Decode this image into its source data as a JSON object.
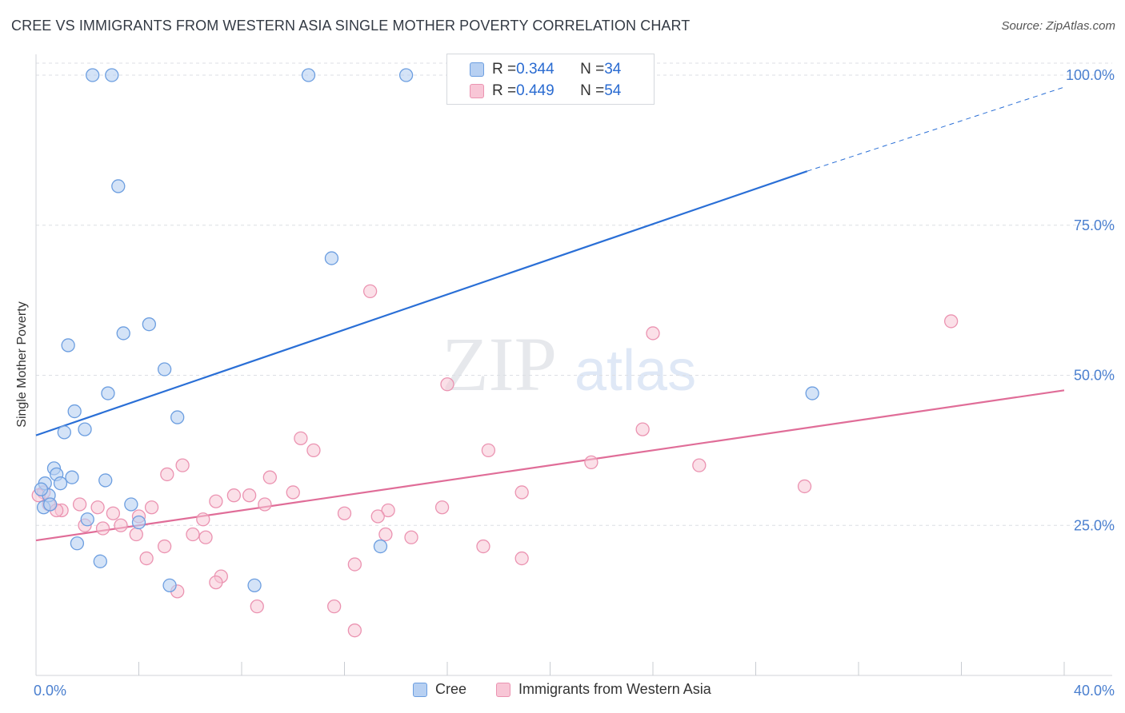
{
  "title": "CREE VS IMMIGRANTS FROM WESTERN ASIA SINGLE MOTHER POVERTY CORRELATION CHART",
  "source": "Source: ZipAtlas.com",
  "watermark": {
    "zip": "ZIP",
    "atlas": "atlas"
  },
  "stats": {
    "r_label": "R = ",
    "n_label": "N = ",
    "rows": [
      {
        "series": "Cree",
        "r": "0.344",
        "n": "34"
      },
      {
        "series": "Immigrants from Western Asia",
        "r": "0.449",
        "n": "54"
      }
    ]
  },
  "legend": {
    "items": [
      "Cree",
      "Immigrants from Western Asia"
    ]
  },
  "colors": {
    "cree_fill": "#b7d0f2",
    "cree_stroke": "#6c9ee0",
    "cree_line": "#2a6fd6",
    "wa_fill": "#f8c6d6",
    "wa_stroke": "#eb93b1",
    "wa_line": "#e06d98",
    "axis_text": "#4a7fcf",
    "grid": "#dcdfe4"
  },
  "chart_data": {
    "type": "scatter",
    "title": "CREE VS IMMIGRANTS FROM WESTERN ASIA SINGLE MOTHER POVERTY CORRELATION CHART",
    "xlabel": "",
    "ylabel": "Single Mother Poverty",
    "xlim": [
      0,
      40
    ],
    "ylim": [
      0,
      102
    ],
    "x_tick_labels": [
      "0.0%",
      "40.0%"
    ],
    "y_ticks": [
      25,
      50,
      75,
      100
    ],
    "y_tick_labels": [
      "25.0%",
      "50.0%",
      "75.0%",
      "100.0%"
    ],
    "grid": true,
    "legend_position": "bottom",
    "series": [
      {
        "name": "Cree",
        "trend": {
          "x0": 0,
          "y0": 40,
          "x1": 30,
          "y1": 84,
          "dashed_to_x": 40,
          "dashed_to_y": 98
        },
        "points": [
          [
            2.2,
            100
          ],
          [
            2.95,
            100
          ],
          [
            10.6,
            100
          ],
          [
            14.4,
            100
          ],
          [
            3.2,
            81.5
          ],
          [
            11.5,
            69.5
          ],
          [
            4.4,
            58.5
          ],
          [
            3.4,
            57
          ],
          [
            1.25,
            55
          ],
          [
            5.0,
            51
          ],
          [
            2.8,
            47
          ],
          [
            30.2,
            47
          ],
          [
            1.5,
            44
          ],
          [
            5.5,
            43
          ],
          [
            1.9,
            41
          ],
          [
            1.1,
            40.5
          ],
          [
            0.7,
            34.5
          ],
          [
            0.8,
            33.5
          ],
          [
            1.4,
            33
          ],
          [
            2.7,
            32.5
          ],
          [
            0.35,
            32
          ],
          [
            0.95,
            32
          ],
          [
            0.5,
            30
          ],
          [
            0.3,
            28
          ],
          [
            3.7,
            28.5
          ],
          [
            2.0,
            26
          ],
          [
            4.0,
            25.5
          ],
          [
            1.6,
            22
          ],
          [
            13.4,
            21.5
          ],
          [
            2.5,
            19
          ],
          [
            5.2,
            15
          ],
          [
            8.5,
            15
          ],
          [
            0.55,
            28.5
          ],
          [
            0.2,
            31
          ]
        ]
      },
      {
        "name": "Immigrants from Western Asia",
        "trend": {
          "x0": 0,
          "y0": 22.5,
          "x1": 40,
          "y1": 47.5
        },
        "points": [
          [
            13.0,
            64
          ],
          [
            35.6,
            59
          ],
          [
            24.0,
            57
          ],
          [
            16.0,
            48.5
          ],
          [
            23.6,
            41
          ],
          [
            10.3,
            39.5
          ],
          [
            10.8,
            37.5
          ],
          [
            17.6,
            37.5
          ],
          [
            21.6,
            35.5
          ],
          [
            5.7,
            35
          ],
          [
            25.8,
            35
          ],
          [
            5.1,
            33.5
          ],
          [
            9.1,
            33
          ],
          [
            29.9,
            31.5
          ],
          [
            10.0,
            30.5
          ],
          [
            18.9,
            30.5
          ],
          [
            7.7,
            30
          ],
          [
            8.3,
            30
          ],
          [
            7.0,
            29
          ],
          [
            8.9,
            28.5
          ],
          [
            2.4,
            28
          ],
          [
            4.5,
            28
          ],
          [
            15.8,
            28
          ],
          [
            13.7,
            27.5
          ],
          [
            1.0,
            27.5
          ],
          [
            3.0,
            27
          ],
          [
            12.0,
            27
          ],
          [
            4.0,
            26.5
          ],
          [
            6.5,
            26
          ],
          [
            13.3,
            26.5
          ],
          [
            1.9,
            25
          ],
          [
            3.3,
            25
          ],
          [
            2.6,
            24.5
          ],
          [
            3.9,
            23.5
          ],
          [
            6.1,
            23.5
          ],
          [
            13.6,
            23.5
          ],
          [
            14.6,
            23
          ],
          [
            6.6,
            23
          ],
          [
            5.0,
            21.5
          ],
          [
            17.4,
            21.5
          ],
          [
            4.3,
            19.5
          ],
          [
            18.9,
            19.5
          ],
          [
            12.4,
            18.5
          ],
          [
            7.2,
            16.5
          ],
          [
            7.0,
            15.5
          ],
          [
            5.5,
            14
          ],
          [
            8.6,
            11.5
          ],
          [
            11.6,
            11.5
          ],
          [
            12.4,
            7.5
          ],
          [
            0.5,
            28.5
          ],
          [
            1.7,
            28.5
          ],
          [
            0.3,
            30.5
          ],
          [
            0.8,
            27.5
          ],
          [
            0.1,
            30
          ]
        ]
      }
    ]
  }
}
